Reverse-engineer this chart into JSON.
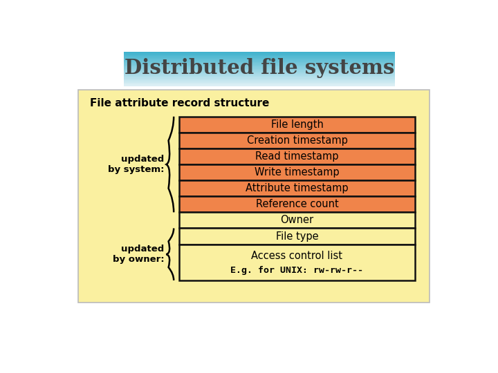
{
  "title": "Distributed file systems",
  "subtitle": "File attribute record structure",
  "orange_rows": [
    "File length",
    "Creation timestamp",
    "Read timestamp",
    "Write timestamp",
    "Attribute timestamp",
    "Reference count"
  ],
  "cream_rows": [
    "Owner",
    "File type"
  ],
  "big_row": "Access control list",
  "big_row_note": "E.g. for UNIX: rw-rw-r--",
  "label_system": "updated\nby system:",
  "label_owner": "updated\nby owner:",
  "bg_color": "#FAF0A0",
  "orange_color": "#F0844A",
  "cream_color": "#FAF0A0",
  "box_border": "#111111",
  "outer_bg": "#FFFFFF",
  "title_color_top": "#3AAFCC",
  "title_color_bot": "#DDEEF5",
  "title_text_color": "#444444"
}
